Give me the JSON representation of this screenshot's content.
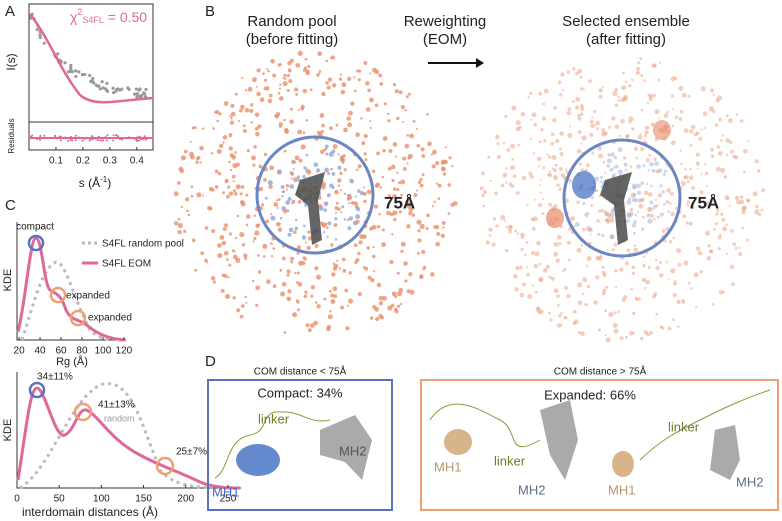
{
  "panels": {
    "a": {
      "label": "A",
      "chi": "χ",
      "chi_sup": "2",
      "chi_sub": "S4FL",
      "chi_value": " = 0.50",
      "ylabel": "I(s)",
      "residual_label": "Residuals",
      "xlabel": "s (Å",
      "xlabel_sup": "-1",
      "xlabel_end": ")",
      "xlim": [
        0,
        0.46
      ],
      "xticks": [
        0.1,
        0.2,
        0.3,
        0.4
      ]
    },
    "b": {
      "label": "B",
      "left_title": [
        "Random pool",
        "(before fitting)"
      ],
      "arrow_label": [
        "Reweighting",
        "(EOM)"
      ],
      "right_title": [
        "Selected ensemble",
        "(after fitting)"
      ],
      "left_radius": "75Å",
      "right_radius": "75Å"
    },
    "c": {
      "label": "C",
      "top": {
        "ylabel": "KDE",
        "xlabel": "Rg (Å)",
        "xlim": [
          18,
          122
        ],
        "xticks": [
          20,
          40,
          60,
          80,
          100,
          120
        ],
        "legend": [
          "S4FL random pool",
          "S4FL EOM"
        ],
        "annotations": [
          "compact",
          "expanded",
          "expanded"
        ]
      },
      "bottom": {
        "ylabel": "KDE",
        "xlabel": "interdomain  distances (Å)",
        "xlim": [
          0,
          265
        ],
        "xticks": [
          0,
          50,
          100,
          150,
          200,
          250
        ],
        "annotations": [
          "34±11%",
          "41±13%",
          "random",
          "25±7%"
        ]
      }
    },
    "d": {
      "label": "D",
      "left": {
        "header": "COM distance < 75Å",
        "title": "Compact: 34%",
        "linker": "linker",
        "mh1": "MH1",
        "mh2": "MH2"
      },
      "right": {
        "header": "COM distance > 75Å",
        "title": "Expanded: 66%",
        "labels": [
          "MH1",
          "linker",
          "MH2",
          "MH1",
          "linker",
          "MH2"
        ]
      }
    }
  }
}
